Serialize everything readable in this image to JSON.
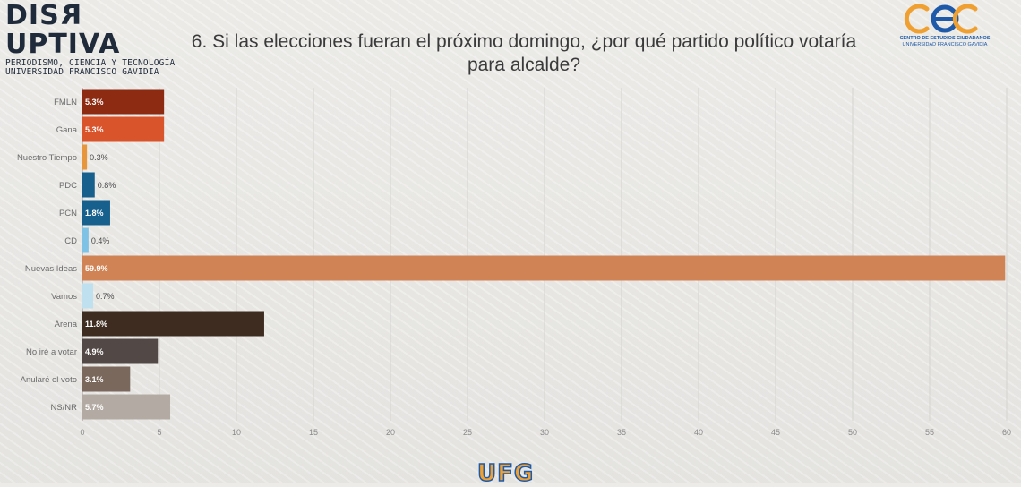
{
  "header": {
    "brand_pre": "DIS",
    "brand_rev": "R",
    "brand_post": "UPTIVA",
    "brand_sub1": "PERIODISMO, CIENCIA Y TECNOLOGÍA",
    "brand_sub2": "UNIVERSIDAD FRANCISCO GAVIDIA",
    "cec_line1": "CENTRO DE ESTUDIOS CIUDADANOS",
    "cec_line2": "UNIVERSIDAD FRANCISCO GAVIDIA"
  },
  "footer": {
    "logo_text": "UFG"
  },
  "colors": {
    "cec_orange": "#f0a030",
    "cec_blue": "#1e5aa8"
  },
  "chart_data": {
    "type": "bar",
    "orientation": "horizontal",
    "title": "6. Si las elecciones fueran el próximo domingo, ¿por qué partido político votaría para alcalde?",
    "categories": [
      "FMLN",
      "Gana",
      "Nuestro Tiempo",
      "PDC",
      "PCN",
      "CD",
      "Nuevas Ideas",
      "Vamos",
      "Arena",
      "No iré a votar",
      "Anularé el voto",
      "NS/NR"
    ],
    "values": [
      5.3,
      5.3,
      0.3,
      0.8,
      1.8,
      0.4,
      59.9,
      0.7,
      11.8,
      4.9,
      3.1,
      5.7
    ],
    "labels": [
      "5.3%",
      "5.3%",
      "0.3%",
      "0.8%",
      "1.8%",
      "0.4%",
      "59.9%",
      "0.7%",
      "11.8%",
      "4.9%",
      "3.1%",
      "5.7%"
    ],
    "bar_colors": [
      "#8c2a12",
      "#d9532b",
      "#e8963d",
      "#175f8c",
      "#175f8c",
      "#7ec3e6",
      "#d08455",
      "#bfe0ee",
      "#3e2c20",
      "#524846",
      "#7a685c",
      "#b3aba3"
    ],
    "label_inside": [
      true,
      true,
      false,
      false,
      true,
      false,
      true,
      false,
      true,
      true,
      true,
      true
    ],
    "xlim": [
      0,
      60
    ],
    "xticks": [
      0,
      5,
      10,
      15,
      20,
      25,
      30,
      35,
      40,
      45,
      50,
      55,
      60
    ],
    "grid": true
  }
}
